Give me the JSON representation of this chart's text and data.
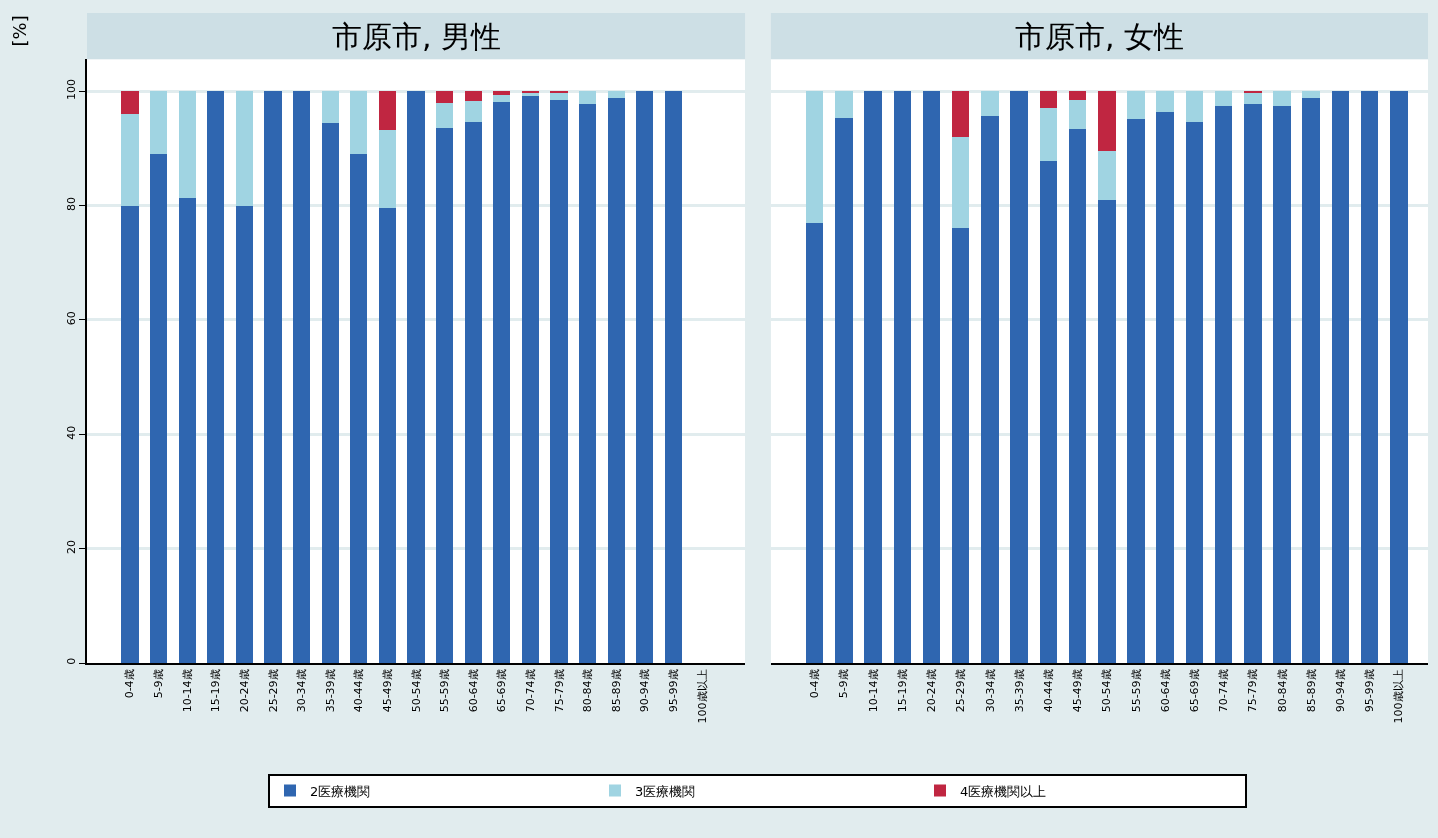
{
  "chart_data": [
    {
      "type": "bar",
      "title": "市原市, 男性",
      "ylabel": "[%]",
      "stacked": true,
      "grid": "y",
      "legend": "bottom",
      "ylim": [
        0,
        105.6
      ],
      "yticks": [
        0,
        20,
        40,
        60,
        80,
        100
      ],
      "categories": [
        "0-4歳",
        "5-9歳",
        "10-14歳",
        "15-19歳",
        "20-24歳",
        "25-29歳",
        "30-34歳",
        "35-39歳",
        "40-44歳",
        "45-49歳",
        "50-54歳",
        "55-59歳",
        "60-64歳",
        "65-69歳",
        "70-74歳",
        "75-79歳",
        "80-84歳",
        "85-89歳",
        "90-94歳",
        "95-99歳",
        "100歳以上"
      ],
      "series": [
        {
          "name": "2医療機関",
          "color": "#2f66b0",
          "values": [
            80,
            89,
            81.3,
            100,
            80,
            100,
            100,
            94.4,
            89,
            79.5,
            100,
            93.6,
            94.6,
            98.1,
            99.2,
            98.4,
            97.8,
            98.8,
            100,
            100,
            null
          ]
        },
        {
          "name": "3医療機関",
          "color": "#a0d4e2",
          "values": [
            16,
            11,
            18.7,
            0,
            20,
            0,
            0,
            5.6,
            11,
            13.7,
            0,
            4.4,
            3.7,
            1.3,
            0.4,
            1.4,
            2.2,
            1.2,
            0,
            0,
            null
          ]
        },
        {
          "name": "4医療機関以上",
          "color": "#c02641",
          "values": [
            4,
            0,
            0,
            0,
            0,
            0,
            0,
            0,
            0,
            6.8,
            0,
            2.0,
            1.7,
            0.6,
            0.4,
            0.2,
            0,
            0,
            0,
            0,
            null
          ]
        }
      ]
    },
    {
      "type": "bar",
      "title": "市原市, 女性",
      "stacked": true,
      "grid": "y",
      "tick_labels": "x",
      "ylim": [
        0,
        105.6
      ],
      "yticks": [
        0,
        20,
        40,
        60,
        80,
        100
      ],
      "categories": [
        "0-4歳",
        "5-9歳",
        "10-14歳",
        "15-19歳",
        "20-24歳",
        "25-29歳",
        "30-34歳",
        "35-39歳",
        "40-44歳",
        "45-49歳",
        "50-54歳",
        "55-59歳",
        "60-64歳",
        "65-69歳",
        "70-74歳",
        "75-79歳",
        "80-84歳",
        "85-89歳",
        "90-94歳",
        "95-99歳",
        "100歳以上"
      ],
      "series": [
        {
          "color": "#2f66b0",
          "values": [
            77,
            95.3,
            100,
            100,
            100,
            76.1,
            95.7,
            100,
            87.8,
            93.3,
            80.9,
            95.2,
            96.4,
            94.6,
            97.4,
            97.8,
            97.4,
            98.8,
            100,
            100,
            100
          ]
        },
        {
          "color": "#a0d4e2",
          "values": [
            23,
            4.7,
            0,
            0,
            0,
            15.9,
            4.3,
            0,
            9.2,
            5.1,
            8.6,
            4.8,
            3.6,
            5.4,
            2.6,
            1.9,
            2.6,
            1.2,
            0,
            0,
            0
          ]
        },
        {
          "color": "#c02641",
          "values": [
            0,
            0,
            0,
            0,
            0,
            8.0,
            0,
            0,
            3.0,
            1.6,
            10.5,
            0,
            0,
            0,
            0,
            0.3,
            0,
            0,
            0,
            0,
            0
          ]
        }
      ]
    }
  ]
}
